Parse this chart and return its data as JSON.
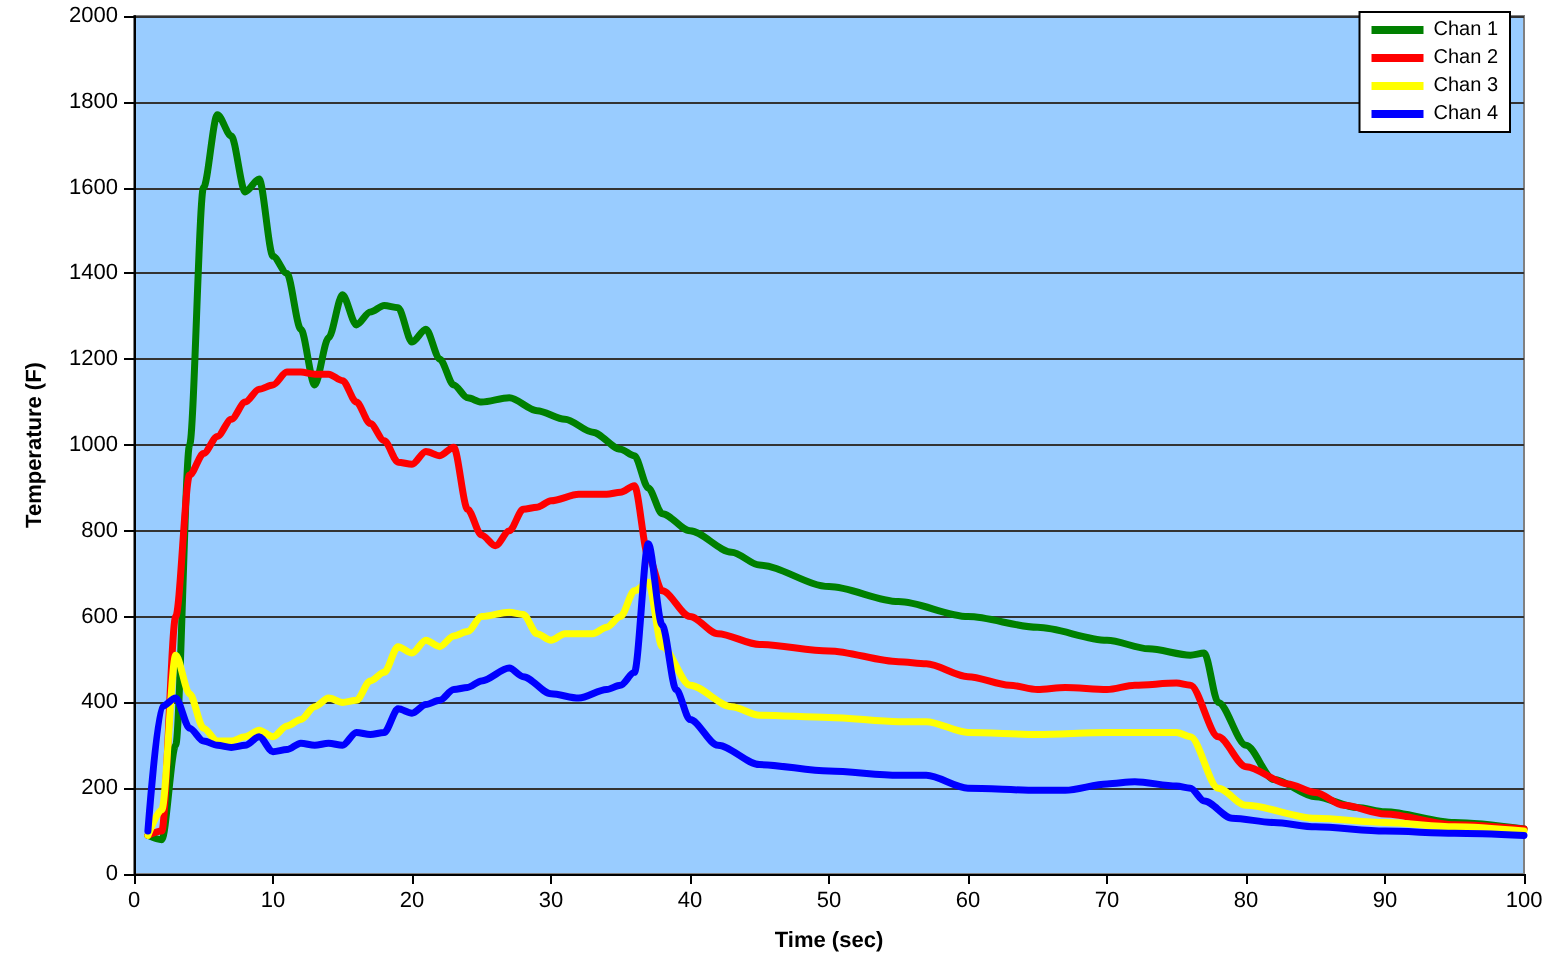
{
  "chart_data": {
    "type": "line",
    "xlabel": "Time (sec)",
    "ylabel": "Temperature (F)",
    "xlim": [
      0,
      100
    ],
    "xticks": [
      0,
      10,
      20,
      30,
      40,
      50,
      60,
      70,
      80,
      90,
      100
    ],
    "ylim": [
      0,
      2000
    ],
    "yticks": [
      0,
      200,
      400,
      600,
      800,
      1000,
      1200,
      1400,
      1600,
      1800,
      2000
    ],
    "grid": "y",
    "legend": "top right",
    "marker": "none",
    "line_style": "solid",
    "series": [
      {
        "name": "Chan 1",
        "color": "#008000",
        "x": [
          1,
          2,
          3,
          4,
          5,
          6,
          7,
          8,
          9,
          10,
          11,
          12,
          13,
          14,
          15,
          16,
          17,
          18,
          19,
          20,
          21,
          22,
          23,
          24,
          25,
          27,
          29,
          31,
          33,
          35,
          36,
          37,
          38,
          40,
          43,
          45,
          50,
          55,
          60,
          65,
          70,
          73,
          76,
          77,
          78,
          80,
          82,
          85,
          88,
          90,
          95,
          100
        ],
        "values": [
          90,
          80,
          300,
          1000,
          1600,
          1770,
          1720,
          1590,
          1620,
          1440,
          1400,
          1270,
          1140,
          1250,
          1350,
          1280,
          1310,
          1325,
          1320,
          1240,
          1270,
          1200,
          1140,
          1110,
          1100,
          1110,
          1080,
          1060,
          1030,
          990,
          975,
          900,
          840,
          800,
          750,
          720,
          670,
          635,
          600,
          575,
          545,
          525,
          510,
          515,
          400,
          300,
          220,
          180,
          155,
          145,
          120,
          105
        ]
      },
      {
        "name": "Chan 2",
        "color": "#ff0000",
        "x": [
          1,
          2,
          3,
          4,
          5,
          6,
          7,
          8,
          9,
          10,
          11,
          12,
          13,
          14,
          15,
          16,
          17,
          18,
          19,
          20,
          21,
          22,
          23,
          24,
          25,
          26,
          27,
          28,
          29,
          30,
          32,
          34,
          35,
          36,
          37,
          38,
          40,
          42,
          45,
          50,
          55,
          57,
          60,
          63,
          65,
          67,
          70,
          72,
          75,
          76,
          78,
          80,
          83,
          85,
          87,
          90,
          95,
          100
        ],
        "values": [
          90,
          100,
          600,
          930,
          980,
          1020,
          1060,
          1100,
          1130,
          1140,
          1170,
          1170,
          1165,
          1165,
          1150,
          1100,
          1050,
          1010,
          960,
          955,
          985,
          975,
          995,
          850,
          790,
          765,
          800,
          850,
          855,
          870,
          885,
          885,
          890,
          905,
          740,
          660,
          600,
          560,
          535,
          520,
          495,
          490,
          460,
          440,
          430,
          435,
          430,
          440,
          445,
          440,
          320,
          250,
          210,
          190,
          160,
          140,
          115,
          105
        ]
      },
      {
        "name": "Chan 3",
        "color": "#ffff00",
        "x": [
          1,
          2,
          3,
          4,
          5,
          6,
          7,
          8,
          9,
          10,
          11,
          12,
          13,
          14,
          15,
          16,
          17,
          18,
          19,
          20,
          21,
          22,
          23,
          24,
          25,
          27,
          28,
          29,
          30,
          31,
          33,
          34,
          35,
          36,
          37,
          38,
          40,
          43,
          45,
          50,
          55,
          57,
          60,
          65,
          70,
          75,
          76,
          78,
          80,
          85,
          90,
          95,
          100
        ],
        "values": [
          90,
          150,
          510,
          420,
          340,
          310,
          310,
          320,
          335,
          320,
          345,
          360,
          390,
          410,
          400,
          405,
          450,
          470,
          530,
          515,
          545,
          530,
          555,
          565,
          600,
          610,
          605,
          560,
          545,
          560,
          560,
          575,
          600,
          660,
          680,
          530,
          440,
          390,
          370,
          365,
          355,
          355,
          330,
          325,
          330,
          330,
          320,
          200,
          160,
          130,
          120,
          110,
          100
        ]
      },
      {
        "name": "Chan 4",
        "color": "#0000ff",
        "x": [
          1,
          2,
          3,
          4,
          5,
          6,
          7,
          8,
          9,
          10,
          11,
          12,
          13,
          14,
          15,
          16,
          17,
          18,
          19,
          20,
          21,
          22,
          23,
          24,
          25,
          27,
          28,
          30,
          32,
          34,
          35,
          36,
          37,
          38,
          39,
          40,
          42,
          45,
          50,
          55,
          57,
          60,
          65,
          67,
          70,
          72,
          75,
          76,
          77,
          79,
          82,
          85,
          90,
          95,
          100
        ],
        "values": [
          100,
          390,
          410,
          340,
          310,
          300,
          295,
          300,
          320,
          285,
          290,
          305,
          300,
          305,
          300,
          330,
          325,
          330,
          385,
          375,
          395,
          405,
          430,
          435,
          450,
          480,
          460,
          420,
          410,
          430,
          440,
          470,
          770,
          580,
          430,
          360,
          300,
          255,
          240,
          230,
          230,
          200,
          195,
          195,
          210,
          215,
          205,
          200,
          170,
          130,
          120,
          110,
          100,
          95,
          90
        ]
      }
    ]
  }
}
